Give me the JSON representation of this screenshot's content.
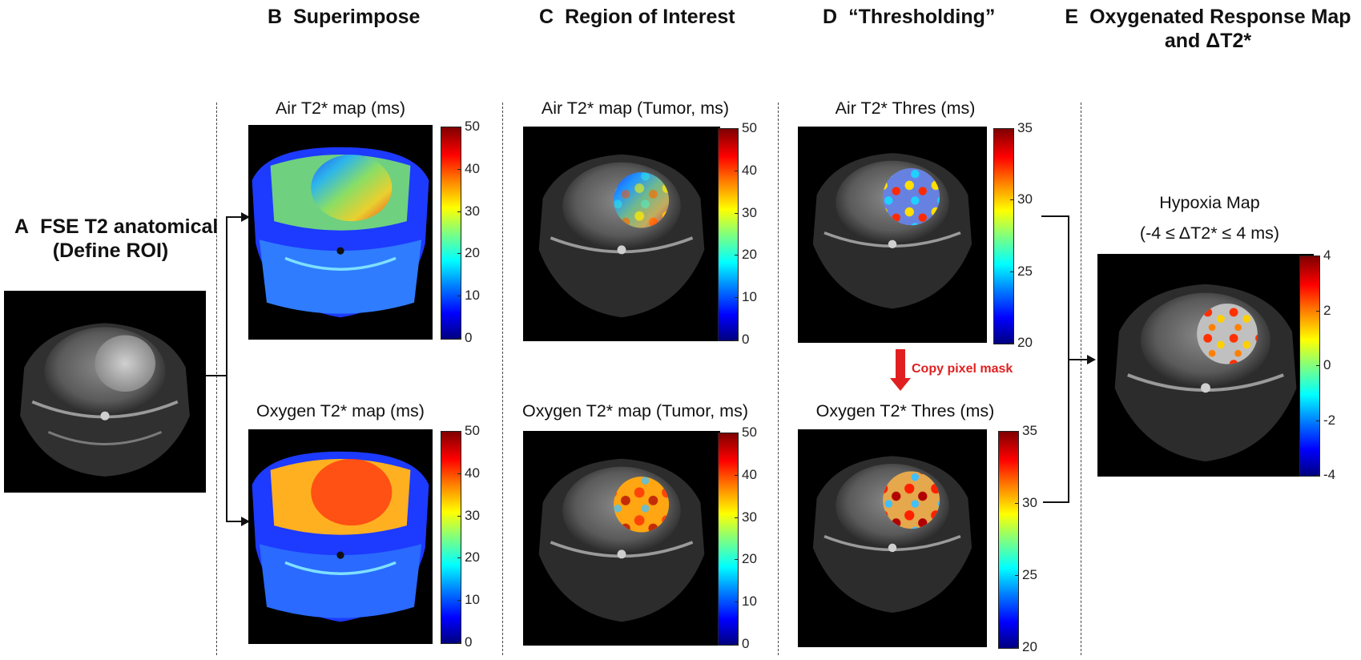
{
  "headers": {
    "A": {
      "letter": "A",
      "line1": "FSE T2 anatomical",
      "line2": "(Define ROI)"
    },
    "B": {
      "letter": "B",
      "text": "Superimpose"
    },
    "C": {
      "letter": "C",
      "text": "Region of Interest"
    },
    "D": {
      "letter": "D",
      "text": "“Thresholding”"
    },
    "E": {
      "letter": "E",
      "line1": "Oxygenated Response Map",
      "line2": "and ΔT2*"
    }
  },
  "panels": {
    "b_air_title": "Air T2* map (ms)",
    "b_oxy_title": "Oxygen T2* map (ms)",
    "c_air_title": "Air T2* map (Tumor, ms)",
    "c_oxy_title": "Oxygen T2* map (Tumor, ms)",
    "d_air_title": "Air T2* Thres (ms)",
    "d_oxy_title": "Oxygen T2* Thres (ms)",
    "e_title1": "Hypoxia Map",
    "e_title2": "(-4 ≤ ΔT2* ≤ 4 ms)"
  },
  "colorbars": {
    "b_air": [
      "50",
      "40",
      "30",
      "20",
      "10",
      "0"
    ],
    "b_oxy": [
      "50",
      "40",
      "30",
      "20",
      "10",
      "0"
    ],
    "c_air": [
      "50",
      "40",
      "30",
      "20",
      "10",
      "0"
    ],
    "c_oxy": [
      "50",
      "40",
      "30",
      "20",
      "10",
      "0"
    ],
    "d_air": [
      "35",
      "30",
      "25",
      "20"
    ],
    "d_oxy": [
      "35",
      "30",
      "25",
      "20"
    ],
    "e": [
      "4",
      "2",
      "0",
      "-2",
      "-4"
    ]
  },
  "copy_mask_label": "Copy pixel mask",
  "colors": {
    "arrow_red": "#e02020",
    "background": "#ffffff",
    "image_bg": "#000000"
  }
}
